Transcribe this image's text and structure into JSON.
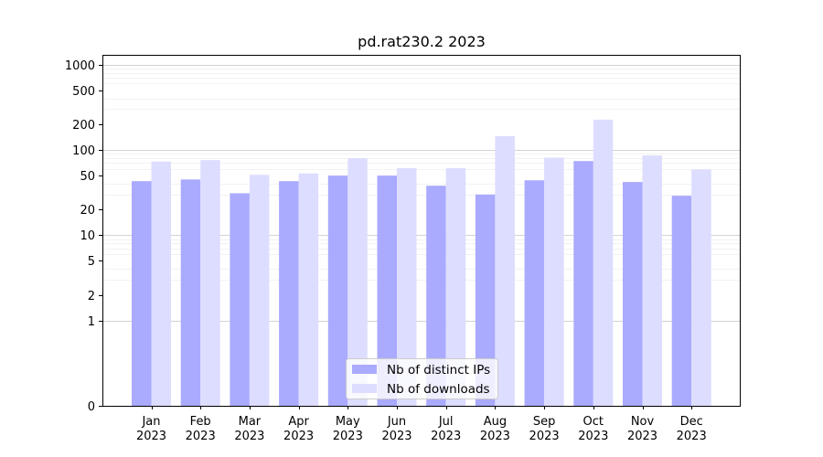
{
  "chart_data": {
    "type": "bar",
    "title": "pd.rat230.2 2023",
    "xlabel": "",
    "ylabel": "",
    "y_scale": "symlog",
    "ylim": [
      0,
      1300
    ],
    "y_ticks": [
      0,
      1,
      2,
      5,
      10,
      20,
      50,
      100,
      200,
      500,
      1000
    ],
    "categories": [
      "Jan\n2023",
      "Feb\n2023",
      "Mar\n2023",
      "Apr\n2023",
      "May\n2023",
      "Jun\n2023",
      "Jul\n2023",
      "Aug\n2023",
      "Sep\n2023",
      "Oct\n2023",
      "Nov\n2023",
      "Dec\n2023"
    ],
    "category_labels": [
      [
        "Jan",
        "2023"
      ],
      [
        "Feb",
        "2023"
      ],
      [
        "Mar",
        "2023"
      ],
      [
        "Apr",
        "2023"
      ],
      [
        "May",
        "2023"
      ],
      [
        "Jun",
        "2023"
      ],
      [
        "Jul",
        "2023"
      ],
      [
        "Aug",
        "2023"
      ],
      [
        "Sep",
        "2023"
      ],
      [
        "Oct",
        "2023"
      ],
      [
        "Nov",
        "2023"
      ],
      [
        "Dec",
        "2023"
      ]
    ],
    "series": [
      {
        "name": "Nb of distinct IPs",
        "color": "#aaaaff",
        "values": [
          43,
          45,
          31,
          43,
          50,
          50,
          38,
          30,
          44,
          74,
          42,
          29
        ]
      },
      {
        "name": "Nb of downloads",
        "color": "#ddddff",
        "values": [
          73,
          76,
          51,
          53,
          80,
          61,
          61,
          145,
          81,
          226,
          86,
          59
        ]
      }
    ],
    "grid": true,
    "legend_position": "bottom-center"
  }
}
